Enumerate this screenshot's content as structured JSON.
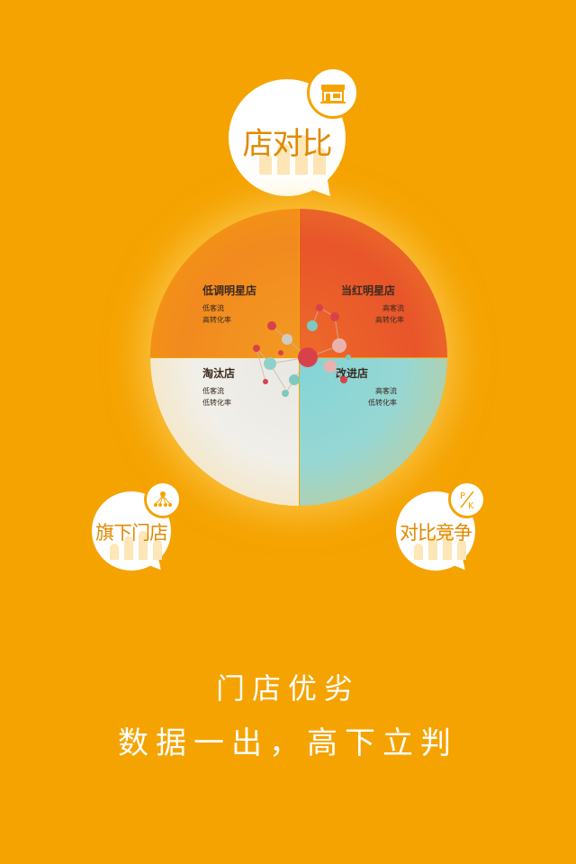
{
  "main_bubble": {
    "label": "店对比",
    "icon": "storefront-icon"
  },
  "stores_bubble": {
    "label": "旗下门店",
    "icon": "network-icon"
  },
  "compete_bubble": {
    "label": "对比竞争",
    "icon": "pk-icon",
    "badge_top": "P",
    "badge_bottom": "K"
  },
  "quadrants": {
    "top_left": {
      "title": "低调明星店",
      "line1": "低客流",
      "line2": "高转化率"
    },
    "top_right": {
      "title": "当红明星店",
      "line1": "高客流",
      "line2": "高转化率"
    },
    "bottom_left": {
      "title": "淘汰店",
      "line1": "低客流",
      "line2": "低转化率"
    },
    "bottom_right": {
      "title": "改进店",
      "line1": "高客流",
      "line2": "低转化率"
    }
  },
  "tagline": {
    "line1": "门店优劣",
    "line2": "数据一出，高下立判"
  },
  "colors": {
    "background": "#f5a300",
    "quad_top_left": "#f28a1f",
    "quad_top_right": "#e8552a",
    "quad_bottom_left": "#ecebe6",
    "quad_bottom_right": "#8fd5d6"
  }
}
